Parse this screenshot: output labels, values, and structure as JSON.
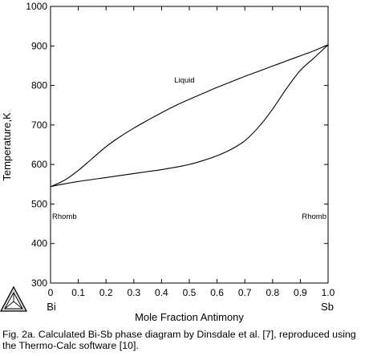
{
  "chart_data": {
    "type": "line",
    "xlabel": "Mole Fraction Antimony",
    "ylabel": "Temperature,K",
    "xlim": [
      0,
      1
    ],
    "ylim": [
      300,
      1000
    ],
    "x_ticks": [
      "0",
      "0.1",
      "0.2",
      "0.3",
      "0.4",
      "0.5",
      "0.6",
      "0.7",
      "0.8",
      "0.9",
      "1.0"
    ],
    "y_ticks": [
      "300",
      "400",
      "500",
      "600",
      "700",
      "800",
      "900",
      "1000"
    ],
    "x_end_labels": {
      "left": "Bi",
      "right": "Sb"
    },
    "region_labels": {
      "liquid": "Liquid",
      "rhomb_left": "Rhomb",
      "rhomb_right": "Rhomb"
    },
    "grid": false,
    "series": [
      {
        "x": [
          0,
          0.05,
          0.1,
          0.15,
          0.2,
          0.25,
          0.3,
          0.35,
          0.4,
          0.45,
          0.5,
          0.55,
          0.6,
          0.65,
          0.7,
          0.75,
          0.8,
          0.85,
          0.9,
          0.95,
          1.0
        ],
        "y": [
          544,
          560,
          585,
          615,
          645,
          670,
          692,
          712,
          731,
          749,
          765,
          780,
          795,
          809,
          823,
          836,
          849,
          862,
          875,
          888,
          903
        ]
      },
      {
        "x": [
          0,
          0.05,
          0.1,
          0.15,
          0.2,
          0.25,
          0.3,
          0.35,
          0.4,
          0.45,
          0.5,
          0.55,
          0.6,
          0.65,
          0.7,
          0.75,
          0.8,
          0.85,
          0.9,
          0.95,
          1.0
        ],
        "y": [
          544,
          551,
          557,
          562,
          567,
          572,
          577,
          582,
          587,
          593,
          600,
          610,
          622,
          638,
          660,
          695,
          740,
          792,
          838,
          870,
          903
        ]
      }
    ]
  },
  "caption": "Fig. 2a. Calculated Bi-Sb phase diagram by Dinsdale et al. [7], reproduced using the Thermo-Calc software [10].",
  "logo": {
    "icon": "thermo-calc-triangle-logo"
  },
  "colors": {
    "line": "#000000",
    "background": "#ffffff"
  }
}
